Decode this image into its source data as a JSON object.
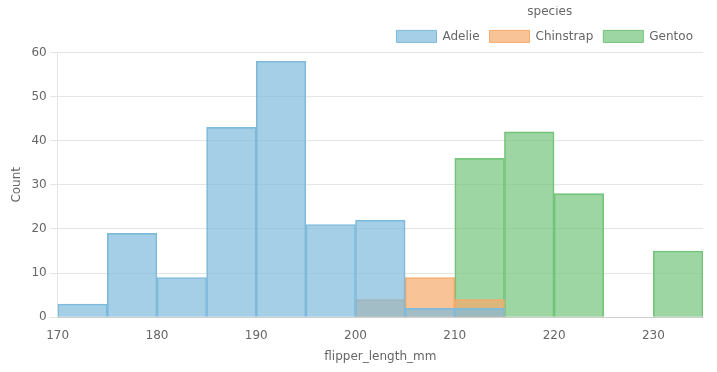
{
  "chart_data": {
    "type": "histogram",
    "xlabel": "flipper_length_mm",
    "ylabel": "Count",
    "bins": [
      170,
      175,
      180,
      185,
      190,
      195,
      200,
      205,
      210,
      215,
      220,
      225,
      230,
      235
    ],
    "series": [
      {
        "name": "Adelie",
        "color": "#7fbadb",
        "values": [
          3,
          19,
          9,
          43,
          58,
          21,
          22,
          2,
          2,
          0,
          0,
          0,
          0
        ]
      },
      {
        "name": "Chinstrap",
        "color": "#f5a96b",
        "values": [
          0,
          0,
          0,
          0,
          0,
          0,
          4,
          9,
          4,
          0,
          0,
          0,
          0
        ]
      },
      {
        "name": "Gentoo",
        "color": "#74c47a",
        "values": [
          0,
          0,
          0,
          0,
          0,
          0,
          0,
          0,
          36,
          42,
          28,
          0,
          15
        ]
      }
    ],
    "legend_title": "species",
    "legend": "upper right",
    "xlim": [
      170,
      235
    ],
    "ylim": [
      0,
      60
    ],
    "xticks": [
      170,
      180,
      190,
      200,
      210,
      220,
      230
    ],
    "yticks": [
      0,
      10,
      20,
      30,
      40,
      50,
      60
    ],
    "grid": true
  }
}
